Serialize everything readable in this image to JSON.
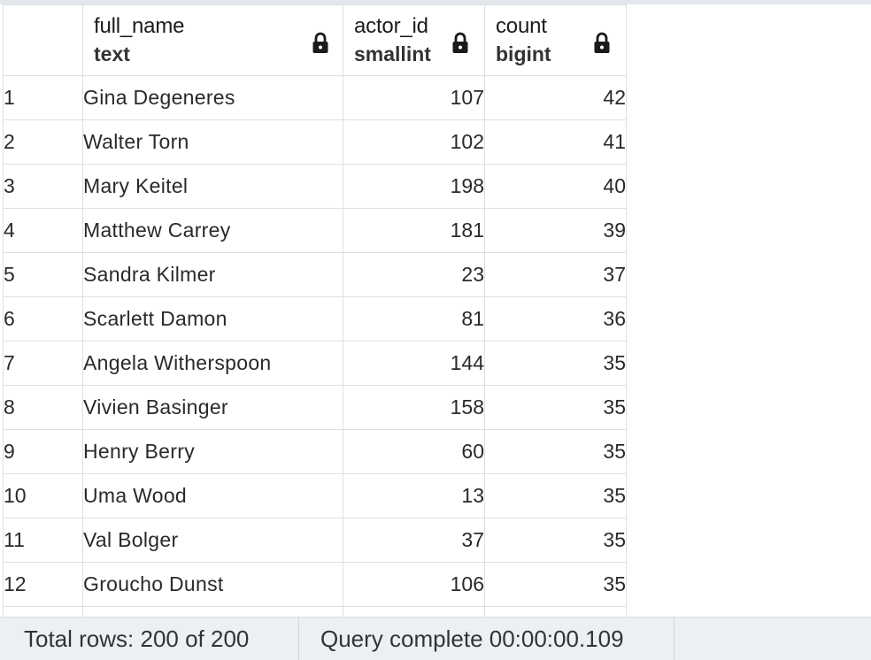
{
  "columns": [
    {
      "name": "full_name",
      "type": "text"
    },
    {
      "name": "actor_id",
      "type": "smallint"
    },
    {
      "name": "count",
      "type": "bigint"
    }
  ],
  "rows": [
    {
      "num": "1",
      "full_name": "Gina Degeneres",
      "actor_id": "107",
      "count": "42"
    },
    {
      "num": "2",
      "full_name": "Walter Torn",
      "actor_id": "102",
      "count": "41"
    },
    {
      "num": "3",
      "full_name": "Mary Keitel",
      "actor_id": "198",
      "count": "40"
    },
    {
      "num": "4",
      "full_name": "Matthew Carrey",
      "actor_id": "181",
      "count": "39"
    },
    {
      "num": "5",
      "full_name": "Sandra Kilmer",
      "actor_id": "23",
      "count": "37"
    },
    {
      "num": "6",
      "full_name": "Scarlett Damon",
      "actor_id": "81",
      "count": "36"
    },
    {
      "num": "7",
      "full_name": "Angela Witherspoon",
      "actor_id": "144",
      "count": "35"
    },
    {
      "num": "8",
      "full_name": "Vivien Basinger",
      "actor_id": "158",
      "count": "35"
    },
    {
      "num": "9",
      "full_name": "Henry Berry",
      "actor_id": "60",
      "count": "35"
    },
    {
      "num": "10",
      "full_name": "Uma Wood",
      "actor_id": "13",
      "count": "35"
    },
    {
      "num": "11",
      "full_name": "Val Bolger",
      "actor_id": "37",
      "count": "35"
    },
    {
      "num": "12",
      "full_name": "Groucho Dunst",
      "actor_id": "106",
      "count": "35"
    }
  ],
  "status": {
    "total_rows": "Total rows: 200 of 200",
    "query": "Query complete 00:00:00.109"
  },
  "icons": {
    "column_lock": "lock-icon"
  }
}
